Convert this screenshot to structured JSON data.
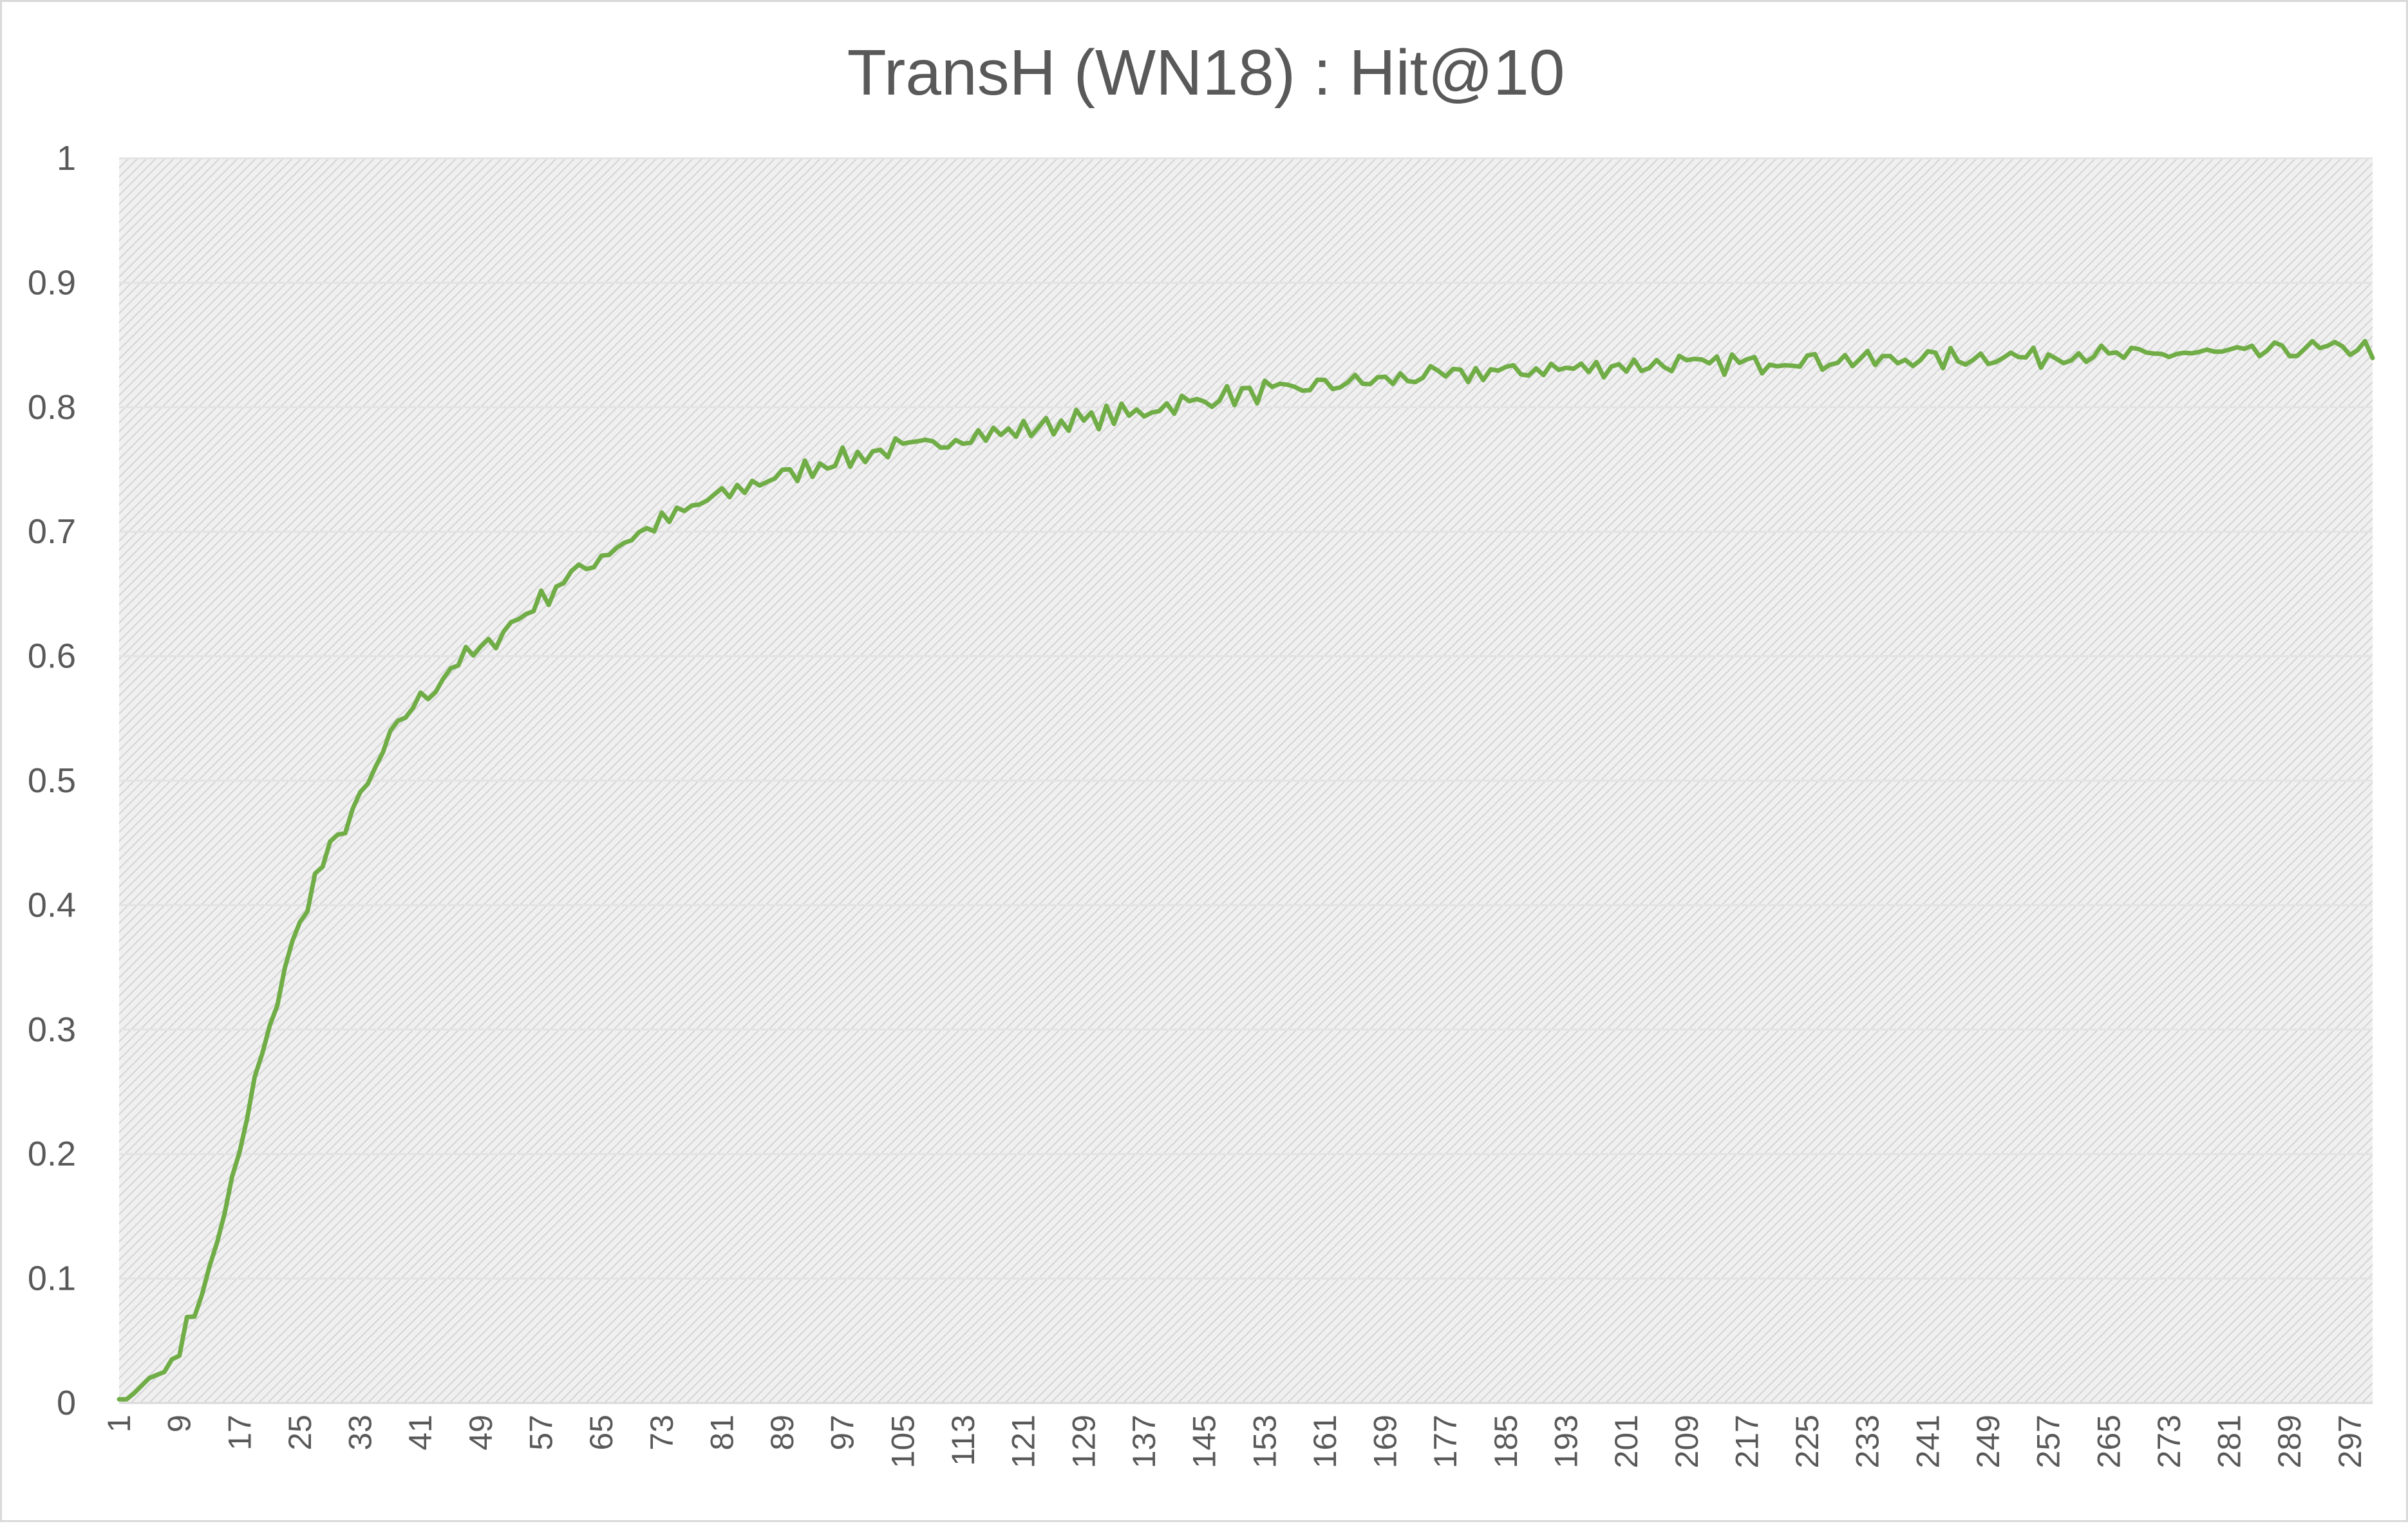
{
  "chart_data": {
    "type": "line",
    "title": "TransH (WN18) : Hit@10",
    "xlabel": "",
    "ylabel": "",
    "xlim": [
      1,
      300
    ],
    "ylim": [
      0,
      1
    ],
    "y_ticks": [
      "0",
      "0.1",
      "0.2",
      "0.3",
      "0.4",
      "0.5",
      "0.6",
      "0.7",
      "0.8",
      "0.9",
      "1"
    ],
    "x_tick_labels": [
      "1",
      "9",
      "17",
      "25",
      "33",
      "41",
      "49",
      "57",
      "65",
      "73",
      "81",
      "89",
      "97",
      "105",
      "113",
      "121",
      "129",
      "137",
      "145",
      "153",
      "161",
      "169",
      "177",
      "185",
      "193",
      "201",
      "209",
      "217",
      "225",
      "233",
      "241",
      "249",
      "257",
      "265",
      "273",
      "281",
      "289",
      "297"
    ],
    "grid": "horizontal",
    "plot_area_fill": "light gray hatched",
    "series": [
      {
        "name": "Hit@10",
        "color": "#70ad47",
        "anchors_x": [
          1,
          2,
          3,
          5,
          7,
          9,
          11,
          13,
          15,
          17,
          19,
          21,
          23,
          25,
          27,
          29,
          31,
          33,
          35,
          37,
          39,
          41,
          43,
          45,
          47,
          49,
          53,
          57,
          61,
          65,
          69,
          73,
          77,
          81,
          85,
          89,
          93,
          97,
          105,
          113,
          121,
          129,
          137,
          145,
          153,
          161,
          169,
          177,
          185,
          193,
          201,
          209,
          217,
          225,
          233,
          241,
          249,
          257,
          265,
          273,
          281,
          289,
          297,
          300
        ],
        "anchors_y": [
          0.003,
          0.003,
          0.008,
          0.02,
          0.025,
          0.045,
          0.075,
          0.105,
          0.155,
          0.2,
          0.26,
          0.3,
          0.35,
          0.385,
          0.42,
          0.445,
          0.465,
          0.485,
          0.51,
          0.535,
          0.555,
          0.565,
          0.575,
          0.59,
          0.6,
          0.605,
          0.625,
          0.645,
          0.665,
          0.68,
          0.695,
          0.708,
          0.72,
          0.73,
          0.738,
          0.745,
          0.752,
          0.758,
          0.768,
          0.775,
          0.782,
          0.79,
          0.797,
          0.806,
          0.813,
          0.818,
          0.822,
          0.826,
          0.829,
          0.831,
          0.833,
          0.835,
          0.836,
          0.837,
          0.838,
          0.839,
          0.84,
          0.841,
          0.842,
          0.843,
          0.844,
          0.846,
          0.848,
          0.847
        ],
        "noise_amplitude": 0.007,
        "n_points": 300
      }
    ]
  }
}
